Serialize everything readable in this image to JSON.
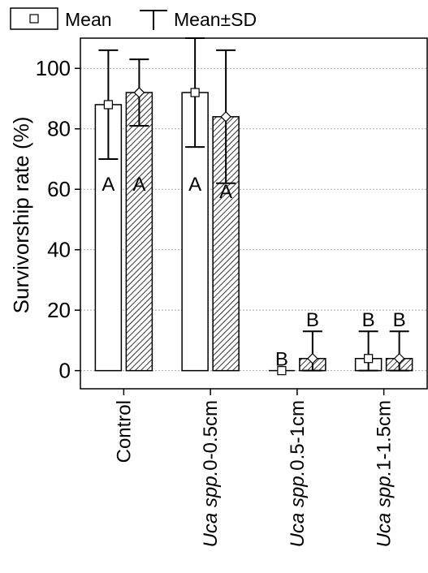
{
  "chart_data": {
    "type": "bar",
    "title": "",
    "xlabel": "",
    "ylabel": "Survivorship rate (%)",
    "ylim": [
      -6,
      110
    ],
    "yticks": [
      0,
      20,
      40,
      60,
      80,
      100
    ],
    "grid": true,
    "legend": {
      "placement": "top-left",
      "mean_label": "Mean",
      "sd_label": "Mean±SD"
    },
    "categories": [
      {
        "italic": "",
        "rest": "Control"
      },
      {
        "italic": "Uca spp.",
        "rest": "0-0.5cm"
      },
      {
        "italic": "Uca spp.",
        "rest": "0.5-1cm"
      },
      {
        "italic": "Uca spp.",
        "rest": "1-1.5cm"
      }
    ],
    "series": [
      {
        "pattern": "open",
        "marker": "square",
        "values": [
          88,
          92,
          0,
          4
        ],
        "sd_upper": [
          106,
          110,
          0,
          13
        ],
        "sd_lower": [
          70,
          74,
          0,
          0
        ],
        "letters": [
          "A",
          "A",
          "B",
          "B"
        ]
      },
      {
        "pattern": "hatched",
        "marker": "diamond",
        "values": [
          92,
          84,
          4,
          4
        ],
        "sd_upper": [
          103,
          106,
          13,
          13
        ],
        "sd_lower": [
          81,
          62,
          0,
          0
        ],
        "letters": [
          "A",
          "A",
          "B",
          "B"
        ]
      }
    ]
  }
}
